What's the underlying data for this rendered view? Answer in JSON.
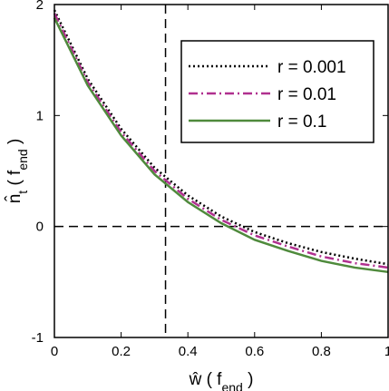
{
  "chart_data": {
    "type": "line",
    "xlabel_parts": [
      {
        "text": "ŵ ( f"
      },
      {
        "text": "end",
        "sub": true
      },
      {
        "text": " )"
      }
    ],
    "ylabel_parts": [
      {
        "text": "n̂"
      },
      {
        "text": "t",
        "sub": true
      },
      {
        "text": " ( f"
      },
      {
        "text": "end",
        "sub": true
      },
      {
        "text": " )"
      }
    ],
    "x": [
      0,
      0.1,
      0.2,
      0.3,
      0.4,
      0.5,
      0.6,
      0.7,
      0.8,
      0.9,
      1
    ],
    "series": [
      {
        "name": "r = 0.001",
        "color": "#000000",
        "dash": "2 3",
        "values": [
          1.95,
          1.33,
          0.88,
          0.53,
          0.28,
          0.09,
          -0.05,
          -0.15,
          -0.23,
          -0.29,
          -0.34
        ]
      },
      {
        "name": "r = 0.01",
        "color": "#b0308f",
        "dash": "10 4 2 4",
        "values": [
          1.92,
          1.3,
          0.85,
          0.5,
          0.25,
          0.06,
          -0.08,
          -0.18,
          -0.27,
          -0.33,
          -0.37
        ]
      },
      {
        "name": "r = 0.1",
        "color": "#4f8a3c",
        "dash": "",
        "values": [
          1.88,
          1.27,
          0.82,
          0.47,
          0.22,
          0.03,
          -0.12,
          -0.22,
          -0.31,
          -0.37,
          -0.41
        ]
      }
    ],
    "reference_lines": {
      "x": 0.333,
      "y": 0
    },
    "xlim": [
      0,
      1
    ],
    "ylim": [
      -1,
      2
    ],
    "xticks": [
      0,
      0.2,
      0.4,
      0.6,
      0.8,
      1
    ],
    "yticks": [
      -1,
      0,
      1,
      2
    ],
    "legend": "upper right"
  }
}
